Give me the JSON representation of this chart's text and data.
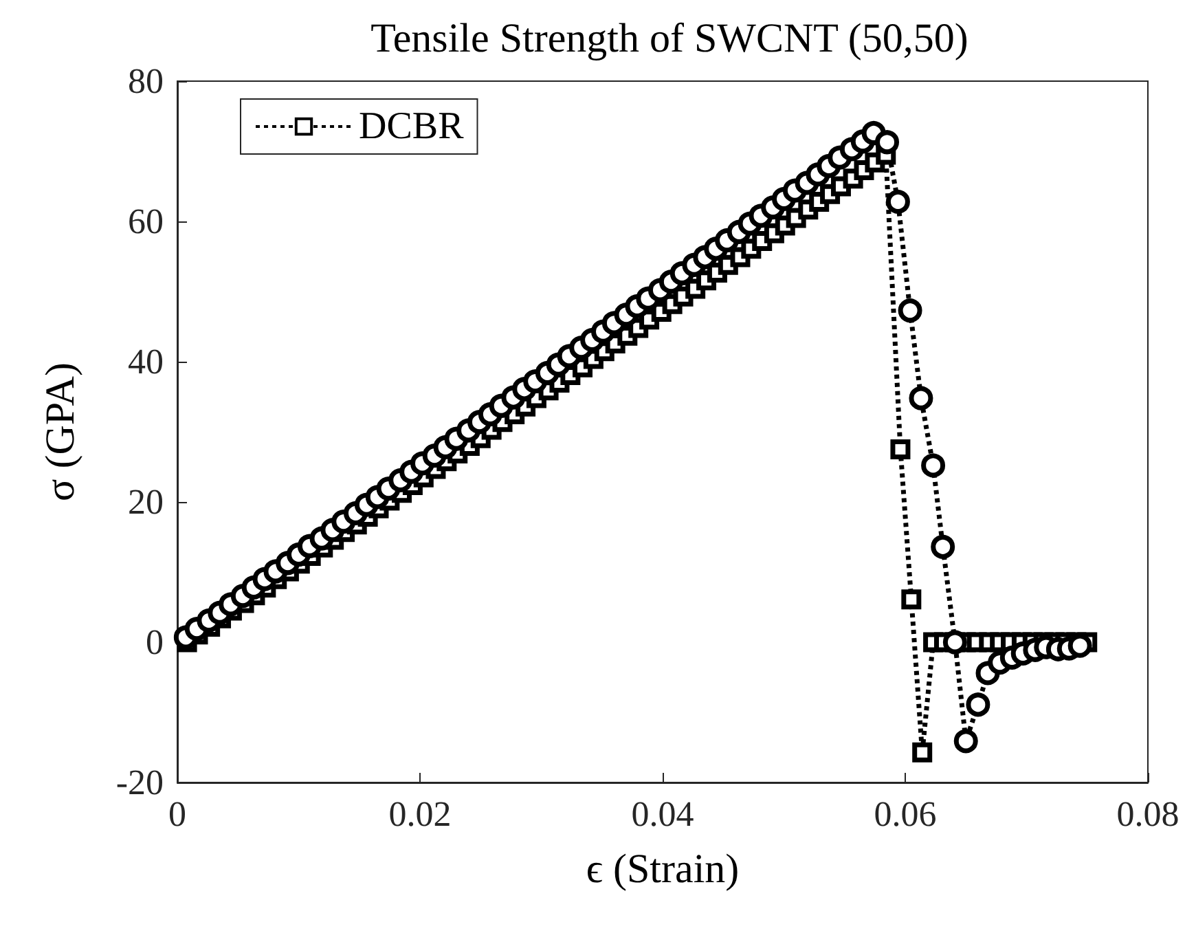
{
  "chart_data": {
    "type": "line",
    "title": "Tensile Strength of SWCNT (50,50)",
    "xlabel": "ϵ (Strain)",
    "ylabel": "σ (GPA)",
    "xlim": [
      0,
      0.08
    ],
    "xticks": [
      0,
      0.02,
      0.04,
      0.06,
      0.08
    ],
    "ylim": [
      -20,
      80
    ],
    "yticks": [
      -20,
      0,
      20,
      40,
      60,
      80
    ],
    "grid": false,
    "legend": "top left",
    "line_style": "dotted",
    "series": [
      {
        "name": "DCBR",
        "color": "#000000",
        "marker": "square",
        "x": [
          0.0008,
          0.0017,
          0.0027,
          0.0036,
          0.0045,
          0.0055,
          0.0064,
          0.0073,
          0.0082,
          0.0092,
          0.0101,
          0.011,
          0.012,
          0.0129,
          0.0138,
          0.0148,
          0.0157,
          0.0166,
          0.0175,
          0.0185,
          0.0194,
          0.0203,
          0.0213,
          0.0222,
          0.0231,
          0.0241,
          0.025,
          0.0259,
          0.0268,
          0.0278,
          0.0287,
          0.0296,
          0.0306,
          0.0315,
          0.0324,
          0.0334,
          0.0343,
          0.0352,
          0.0361,
          0.0371,
          0.038,
          0.0389,
          0.0399,
          0.0408,
          0.0417,
          0.0427,
          0.0436,
          0.0445,
          0.0454,
          0.0464,
          0.0473,
          0.0482,
          0.0492,
          0.0501,
          0.051,
          0.052,
          0.0529,
          0.0538,
          0.0547,
          0.0557,
          0.0566,
          0.0575,
          0.0584,
          0.0596,
          0.0605,
          0.0614,
          0.0623,
          0.0632,
          0.0641,
          0.065,
          0.0659,
          0.0669,
          0.0678,
          0.0687,
          0.0696,
          0.0705,
          0.0714,
          0.0723,
          0.0732,
          0.0741,
          0.075
        ],
        "values": [
          0,
          1.1,
          2.2,
          3.4,
          4.5,
          5.6,
          6.7,
          7.8,
          9.0,
          10.1,
          11.2,
          12.3,
          13.5,
          14.6,
          15.7,
          16.8,
          17.9,
          19.1,
          20.2,
          21.3,
          22.4,
          23.5,
          24.7,
          25.8,
          26.9,
          28.0,
          29.1,
          30.3,
          31.4,
          32.5,
          33.6,
          34.8,
          35.9,
          37.0,
          38.1,
          39.2,
          40.4,
          41.5,
          42.6,
          43.7,
          44.8,
          46.0,
          47.1,
          48.2,
          49.3,
          50.4,
          51.6,
          52.7,
          53.8,
          54.9,
          56.1,
          57.2,
          58.3,
          59.4,
          60.5,
          61.7,
          62.8,
          63.9,
          65.0,
          66.1,
          67.3,
          68.4,
          69.5,
          27.5,
          6.1,
          -15.7,
          0,
          0,
          0,
          0,
          0,
          0,
          0,
          0,
          0,
          0,
          0,
          0,
          0,
          0,
          0
        ]
      },
      {
        "color": "#000000",
        "marker": "circle",
        "x": [
          0.0007,
          0.0016,
          0.0026,
          0.0035,
          0.0044,
          0.0054,
          0.0063,
          0.0072,
          0.0081,
          0.0091,
          0.01,
          0.0109,
          0.0119,
          0.0128,
          0.0137,
          0.0147,
          0.0156,
          0.0165,
          0.0174,
          0.0184,
          0.0193,
          0.0202,
          0.0212,
          0.0221,
          0.023,
          0.024,
          0.0249,
          0.0258,
          0.0267,
          0.0277,
          0.0286,
          0.0295,
          0.0305,
          0.0314,
          0.0323,
          0.0333,
          0.0342,
          0.0351,
          0.036,
          0.037,
          0.0379,
          0.0388,
          0.0398,
          0.0407,
          0.0416,
          0.0426,
          0.0435,
          0.0444,
          0.0453,
          0.0463,
          0.0472,
          0.0481,
          0.0491,
          0.05,
          0.0509,
          0.0519,
          0.0528,
          0.0537,
          0.0546,
          0.0556,
          0.0565,
          0.0574,
          0.0585,
          0.0594,
          0.0604,
          0.0613,
          0.0623,
          0.0631,
          0.0641,
          0.065,
          0.066,
          0.0668,
          0.0678,
          0.0688,
          0.0697,
          0.0707,
          0.0716,
          0.0726,
          0.0735,
          0.0744
        ],
        "values": [
          0.7,
          1.9,
          3.1,
          4.2,
          5.4,
          6.6,
          7.8,
          9.0,
          10.1,
          11.3,
          12.5,
          13.7,
          14.8,
          16.0,
          17.2,
          18.4,
          19.6,
          20.7,
          21.9,
          23.1,
          24.3,
          25.5,
          26.6,
          27.8,
          29.0,
          30.2,
          31.4,
          32.5,
          33.7,
          34.9,
          36.1,
          37.2,
          38.4,
          39.6,
          40.8,
          42.0,
          43.1,
          44.3,
          45.5,
          46.7,
          47.9,
          49.0,
          50.2,
          51.4,
          52.6,
          53.8,
          54.9,
          56.1,
          57.3,
          58.5,
          59.7,
          60.8,
          62.0,
          63.2,
          64.4,
          65.5,
          66.7,
          67.9,
          69.1,
          70.3,
          71.4,
          72.6,
          71.3,
          62.8,
          47.3,
          34.8,
          25.2,
          13.6,
          0,
          -14.1,
          -8.9,
          -4.4,
          -2.9,
          -2.2,
          -1.6,
          -1.1,
          -0.7,
          -1.0,
          -0.9,
          -0.5
        ]
      }
    ]
  }
}
